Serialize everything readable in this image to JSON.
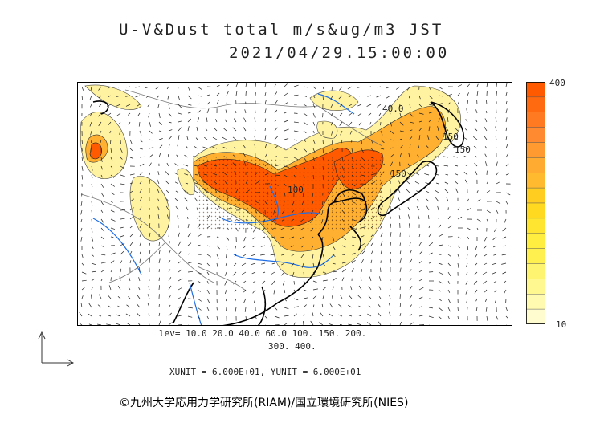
{
  "header": {
    "title": "U-V&Dust total m/s&ug/m3 JST",
    "datetime": "2021/04/29.15:00:00"
  },
  "colorbar": {
    "max_label": "400",
    "min_label": "10",
    "colors": [
      "#ff5a00",
      "#ff6a10",
      "#ff7a20",
      "#ff8a30",
      "#ff9a30",
      "#ffaa30",
      "#ffba30",
      "#ffcc20",
      "#ffd820",
      "#ffe430",
      "#ffee40",
      "#fff050",
      "#fff470",
      "#fff890",
      "#fffab0",
      "#fffcd0"
    ]
  },
  "contour_labels": [
    "40.0",
    "150",
    "150",
    "100",
    "150"
  ],
  "legend": {
    "levels_line1": "lev= 10.0 20.0 40.0 60.0 100. 150. 200.",
    "levels_line2": "300. 400.",
    "unit_line": "XUNIT = 6.000E+01, YUNIT = 6.000E+01"
  },
  "footer": {
    "copyright": "©九州大学応用力学研究所(RIAM)/国立環境研究所(NIES)"
  },
  "style_colors": {
    "coast": "#000000",
    "rivers": "#1e6ee6",
    "borders": "#777777",
    "dust_high": "#ff5a00",
    "dust_mid": "#ffb030",
    "dust_low": "#fff2a0"
  },
  "icons": [
    "axes-glyph-icon"
  ]
}
